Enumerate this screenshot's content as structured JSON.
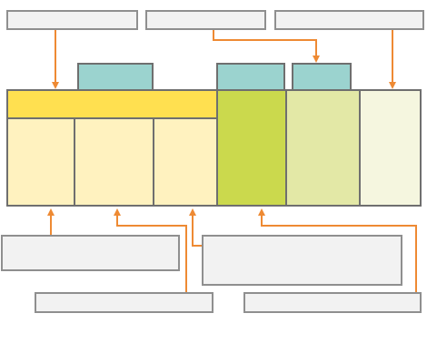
{
  "diagram": {
    "callouts": {
      "top_left": "",
      "top_middle": "",
      "top_right": "",
      "bottom_left": "",
      "bottom_middle_left": "",
      "bottom_right": "",
      "bottom_far_right": ""
    },
    "tabs": {
      "tab_1": "",
      "tab_2": "",
      "tab_3": ""
    },
    "colors": {
      "header_yellow": "#ffe050",
      "cell_light_yellow": "#fff2bf",
      "cell_green": "#cbd94d",
      "cell_light_green": "#e3e8a6",
      "cell_pale": "#f5f6df",
      "tab_teal": "#9bd3cf",
      "arrow_orange": "#ee8a33",
      "callout_gray": "#f2f2f2"
    }
  }
}
